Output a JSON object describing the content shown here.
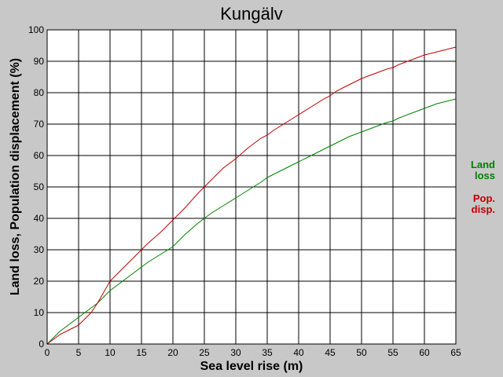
{
  "chart_data": {
    "type": "line",
    "title": "Kungälv",
    "xlabel": "Sea level rise (m)",
    "ylabel": "Land loss, Population displacement (%)",
    "xlim": [
      0,
      65
    ],
    "ylim": [
      0,
      100
    ],
    "xticks": [
      0,
      5,
      10,
      15,
      20,
      25,
      30,
      35,
      40,
      45,
      50,
      55,
      60,
      65
    ],
    "yticks": [
      0,
      10,
      20,
      30,
      40,
      50,
      60,
      70,
      80,
      90,
      100
    ],
    "grid": true,
    "legend_position": "right",
    "series": [
      {
        "name_lines": [
          "Land",
          "loss"
        ],
        "color": "#008000",
        "x": [
          0,
          1,
          2,
          3,
          4,
          5,
          6,
          7,
          8,
          9,
          10,
          12,
          14,
          15,
          16,
          18,
          20,
          22,
          24,
          25,
          26,
          28,
          30,
          32,
          34,
          35,
          36,
          38,
          40,
          42,
          44,
          45,
          46,
          48,
          50,
          52,
          54,
          55,
          56,
          58,
          60,
          62,
          64,
          65
        ],
        "y": [
          0,
          2,
          4,
          5.5,
          7,
          8.5,
          10,
          11.5,
          13,
          15,
          17,
          20,
          23,
          24.5,
          26,
          28.5,
          31,
          35,
          38.5,
          40,
          41.5,
          44,
          46.5,
          49,
          51.5,
          53,
          54,
          56,
          58,
          60,
          62,
          63,
          64,
          66,
          67.5,
          69,
          70.5,
          71,
          72,
          73.5,
          75,
          76.5,
          77.5,
          78
        ]
      },
      {
        "name_lines": [
          "Pop.",
          "disp."
        ],
        "color": "#c00000",
        "x": [
          0,
          1,
          2,
          3,
          4,
          5,
          6,
          7,
          8,
          9,
          10,
          11,
          12,
          14,
          15,
          16,
          18,
          20,
          22,
          24,
          25,
          26,
          28,
          30,
          32,
          34,
          35,
          36,
          38,
          40,
          42,
          44,
          45,
          46,
          48,
          50,
          52,
          54,
          55,
          56,
          58,
          60,
          62,
          64,
          65
        ],
        "y": [
          0,
          1.5,
          3,
          4,
          5,
          6,
          8,
          10,
          13,
          16.5,
          20,
          22,
          24,
          28,
          30,
          32,
          35.5,
          39.5,
          43.5,
          48,
          50,
          52,
          56,
          59,
          62.5,
          65.5,
          66.5,
          68,
          70.5,
          73,
          75.5,
          78,
          79,
          80.5,
          82.5,
          84.5,
          86,
          87.5,
          88,
          89,
          90.5,
          92,
          93,
          94,
          94.5
        ]
      }
    ]
  }
}
